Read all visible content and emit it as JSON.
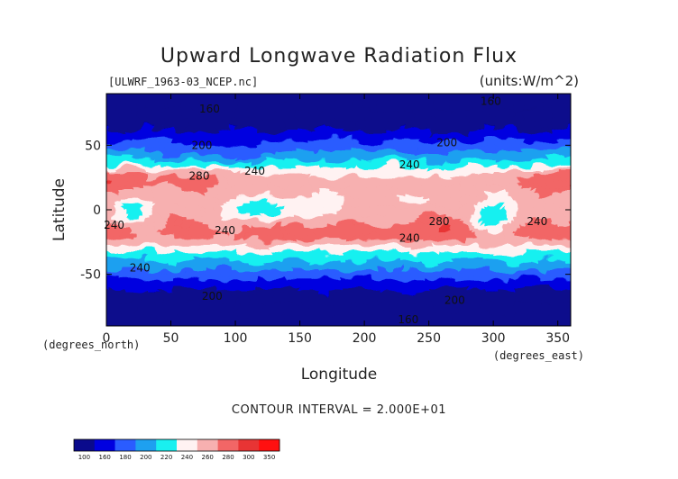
{
  "chart_data": {
    "type": "heatmap",
    "title": "Upward Longwave Radiation Flux",
    "file_label": "[ULWRF_1963-03_NCEP.nc]",
    "units_label": "(units:W/m^2)",
    "xlabel": "Longitude",
    "ylabel": "Latitude",
    "x_unit_note": "(degrees_east)",
    "y_unit_note": "(degrees_north)",
    "xlim": [
      0,
      360
    ],
    "ylim": [
      -90,
      90
    ],
    "x_ticks": [
      0,
      50,
      100,
      150,
      200,
      250,
      300,
      350
    ],
    "y_ticks": [
      -50,
      0,
      50
    ],
    "contour_interval_text": "CONTOUR INTERVAL = 2.000E+01",
    "contour_interval": 20,
    "levels": [
      100,
      160,
      180,
      200,
      220,
      240,
      260,
      280,
      300,
      350
    ],
    "level_colors": [
      "#0a0a8c",
      "#0000e0",
      "#2a5cff",
      "#1ea0f0",
      "#19f0f0",
      "#fff2f2",
      "#f7b0b0",
      "#f26666",
      "#e83434",
      "#ff1010"
    ],
    "colorbar_labels": [
      "100",
      "160",
      "180",
      "200",
      "220",
      "240",
      "260",
      "280",
      "300",
      "350"
    ],
    "contour_labels": [
      {
        "text": "160",
        "lon": 80,
        "lat": 78
      },
      {
        "text": "160",
        "lon": 298,
        "lat": 84
      },
      {
        "text": "200",
        "lon": 74,
        "lat": 50
      },
      {
        "text": "200",
        "lon": 264,
        "lat": 52
      },
      {
        "text": "240",
        "lon": 115,
        "lat": 30
      },
      {
        "text": "240",
        "lon": 235,
        "lat": 35
      },
      {
        "text": "280",
        "lon": 72,
        "lat": 26
      },
      {
        "text": "280",
        "lon": 258,
        "lat": -9
      },
      {
        "text": "240",
        "lon": 6,
        "lat": -12
      },
      {
        "text": "240",
        "lon": 92,
        "lat": -16
      },
      {
        "text": "240",
        "lon": 235,
        "lat": -22
      },
      {
        "text": "240",
        "lon": 334,
        "lat": -9
      },
      {
        "text": "240",
        "lon": 26,
        "lat": -45
      },
      {
        "text": "200",
        "lon": 82,
        "lat": -67
      },
      {
        "text": "200",
        "lon": 270,
        "lat": -70
      },
      {
        "text": "160",
        "lon": 234,
        "lat": -85
      }
    ]
  }
}
